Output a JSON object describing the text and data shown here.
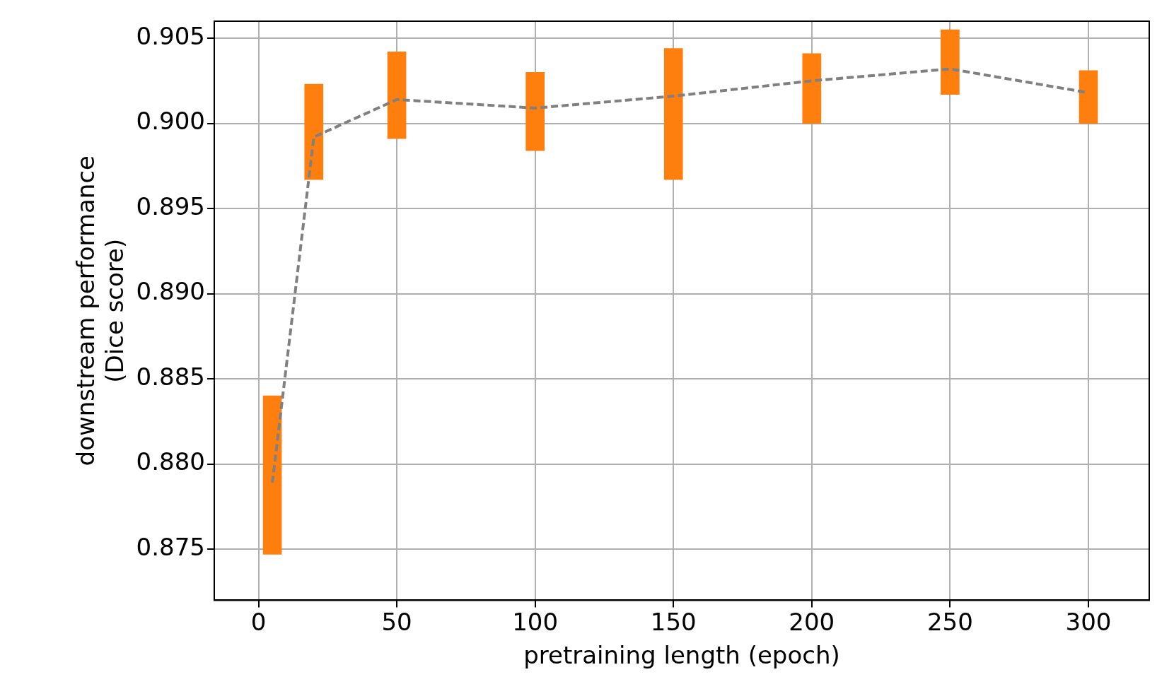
{
  "chart_data": {
    "type": "bar",
    "xlabel": "pretraining length (epoch)",
    "ylabel": "downstream performance\n(Dice score)",
    "xlim": [
      -16,
      322
    ],
    "xticks": [
      0,
      50,
      100,
      150,
      200,
      250,
      300
    ],
    "ylim": [
      0.872,
      0.906
    ],
    "yticks": [
      0.875,
      {
        "value": 0.88,
        "label": "0.880"
      },
      0.885,
      {
        "value": 0.89,
        "label": "0.890"
      },
      0.895,
      {
        "value": 0.9,
        "label": "0.900"
      },
      0.905
    ],
    "grid": true,
    "legend": false,
    "series": [
      {
        "type": "line",
        "color": "#808080",
        "line_style": "dashed",
        "marker": "none",
        "x": [
          5,
          20,
          50,
          100,
          150,
          200,
          250,
          300
        ],
        "values": [
          0.8789,
          0.8992,
          0.9014,
          0.9009,
          0.9016,
          0.9025,
          0.9032,
          0.9018
        ]
      },
      {
        "color": "#ff7f0e",
        "x": [
          5,
          20,
          50,
          100,
          150,
          200,
          250,
          300
        ],
        "base": [
          0.8747,
          0.8967,
          0.8991,
          0.8984,
          0.8967,
          0.9,
          0.9017,
          0.9
        ],
        "values": [
          0.0093,
          0.0056,
          0.0051,
          0.0046,
          0.0077,
          0.0041,
          0.0038,
          0.0031
        ]
      }
    ]
  }
}
